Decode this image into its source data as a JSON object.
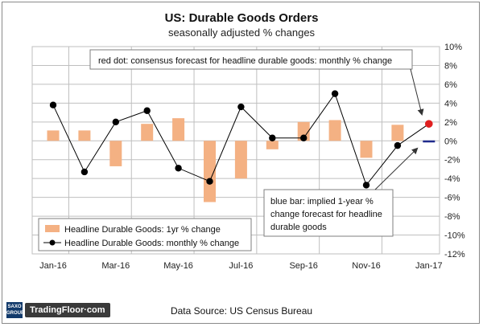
{
  "header": {
    "title": "US: Durable Goods Orders",
    "subtitle": "seasonally adjusted % changes"
  },
  "footer": {
    "source": "Data Source: US Census Bureau",
    "logo_small": "SAXO GROUP",
    "logo_main": "TradingFloor·com"
  },
  "annotations": {
    "red_dot_note": "red dot: consensus forecast for headline durable goods: monthly % change",
    "blue_bar_note_lines": [
      "blue bar: implied 1-year %",
      "change forecast for headline",
      "durable goods"
    ]
  },
  "chart_data": {
    "type": "bar",
    "title": "US: Durable Goods Orders",
    "subtitle": "seasonally adjusted % changes",
    "categories": [
      "Jan-16",
      "Feb-16",
      "Mar-16",
      "Apr-16",
      "May-16",
      "Jun-16",
      "Jul-16",
      "Aug-16",
      "Sep-16",
      "Oct-16",
      "Nov-16",
      "Dec-16",
      "Jan-17"
    ],
    "x_tick_labels": [
      "Jan-16",
      "Mar-16",
      "May-16",
      "Jul-16",
      "Sep-16",
      "Nov-16",
      "Jan-17"
    ],
    "ylim": [
      -12,
      10
    ],
    "y_ticks": [
      10,
      8,
      6,
      4,
      2,
      0,
      -2,
      -4,
      -6,
      -8,
      -10,
      -12
    ],
    "y_tick_labels": [
      "10%",
      "8%",
      "6%",
      "4%",
      "2%",
      "0%",
      "-2%",
      "-4%",
      "-6%",
      "-8%",
      "-10%",
      "-12%"
    ],
    "y_axis_side": "right",
    "grid": true,
    "legend_position": "bottom-left",
    "series": [
      {
        "name": "Headline Durable Goods: 1yr % change",
        "type": "bar",
        "color": "#f4b183",
        "values": [
          1.1,
          1.1,
          -2.7,
          1.8,
          2.4,
          -6.5,
          -4.0,
          -0.9,
          2.0,
          2.2,
          -1.8,
          1.7,
          -0.1
        ]
      },
      {
        "name": "Headline Durable Goods: monthly % change",
        "type": "line",
        "color": "#000000",
        "values": [
          3.8,
          -3.3,
          2.0,
          3.2,
          -2.9,
          -4.3,
          3.6,
          0.3,
          0.3,
          5.0,
          -4.7,
          -0.5,
          1.8
        ]
      }
    ],
    "forecast": {
      "consensus_monthly_category": "Jan-17",
      "consensus_monthly_value": 1.8,
      "consensus_color": "#e02020",
      "implied_1yr_category": "Jan-17",
      "implied_1yr_value": -0.1,
      "implied_color": "#1f2a8c"
    }
  }
}
